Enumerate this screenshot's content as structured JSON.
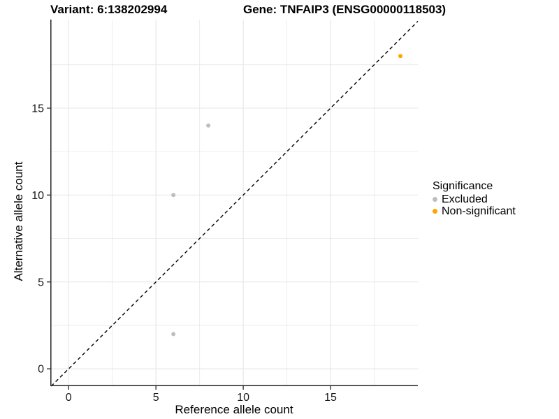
{
  "header": {
    "variant_title": "Variant: 6:138202994",
    "gene_title": "Gene: TNFAIP3 (ENSG00000118503)"
  },
  "chart_data": {
    "type": "scatter",
    "xlabel": "Reference allele count",
    "ylabel": "Alternative allele count",
    "xlim": [
      -1.05,
      20.0
    ],
    "ylim": [
      -1.0,
      20.1
    ],
    "x_ticks": [
      0,
      5,
      10,
      15
    ],
    "y_ticks": [
      0,
      5,
      10,
      15
    ],
    "x_minor_ticks": [
      2.5,
      7.5,
      12.5,
      17.5
    ],
    "y_minor_ticks": [
      2.5,
      7.5,
      12.5,
      17.5
    ],
    "grid": true,
    "legend": {
      "title": "Significance",
      "position": "right"
    },
    "series": [
      {
        "name": "Excluded",
        "color": "#bebebe",
        "points": [
          [
            6,
            2
          ],
          [
            6,
            10
          ],
          [
            8,
            14
          ]
        ]
      },
      {
        "name": "Non-significant",
        "color": "#ffa500",
        "points": [
          [
            19,
            18
          ]
        ]
      }
    ],
    "identity_line": {
      "type": "y=x",
      "style": "dashed",
      "color": "#000000"
    }
  },
  "style_colors": {
    "grid": "#e8e8e8",
    "axis_line": "#333333",
    "tick_mark": "#333333",
    "tick_label": "#1a1a1a"
  }
}
